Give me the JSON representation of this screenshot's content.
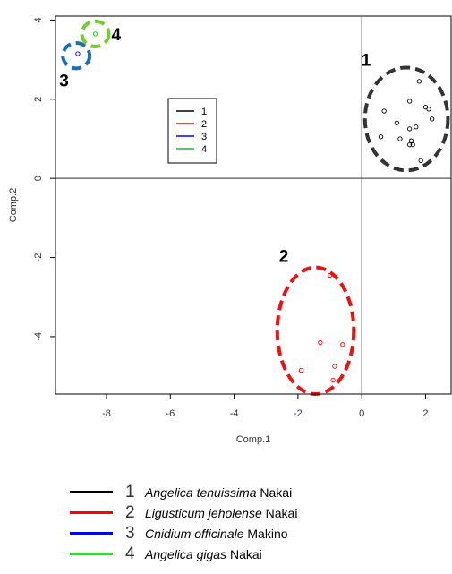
{
  "chart_data": {
    "type": "scatter",
    "title": "",
    "xlabel": "Comp.1",
    "ylabel": "Comp.2",
    "xlim": [
      -9.6,
      2.8
    ],
    "ylim": [
      -5.45,
      4.1
    ],
    "xticks": [
      -8,
      -6,
      -4,
      -2,
      0,
      2
    ],
    "yticks": [
      -4,
      -2,
      0,
      2,
      4
    ],
    "xtick_labels": [
      "-8",
      "-6",
      "-4",
      "-2",
      "0",
      "2"
    ],
    "ytick_labels": [
      "-4",
      "-2",
      "0",
      "2",
      "4"
    ],
    "reference_lines": {
      "x": 0,
      "y": 0
    },
    "grid": false,
    "legend_placement": "upper-center inside plot",
    "series": [
      {
        "name": "1",
        "color": "#000000",
        "points": [
          [
            0.7,
            1.7
          ],
          [
            0.6,
            1.05
          ],
          [
            1.1,
            1.4
          ],
          [
            1.2,
            1.0
          ],
          [
            1.5,
            1.25
          ],
          [
            1.5,
            1.95
          ],
          [
            1.8,
            2.45
          ],
          [
            1.55,
            0.95
          ],
          [
            1.5,
            0.85
          ],
          [
            1.6,
            0.85
          ],
          [
            1.7,
            1.3
          ],
          [
            2.0,
            1.8
          ],
          [
            2.2,
            1.5
          ],
          [
            2.1,
            1.75
          ],
          [
            1.85,
            0.45
          ]
        ]
      },
      {
        "name": "2",
        "color": "#ff0000",
        "points": [
          [
            -1.0,
            -2.45
          ],
          [
            -1.3,
            -4.15
          ],
          [
            -0.6,
            -4.2
          ],
          [
            -0.85,
            -4.75
          ],
          [
            -1.9,
            -4.85
          ],
          [
            -0.9,
            -5.1
          ]
        ]
      },
      {
        "name": "3",
        "color": "#0000ff",
        "points": [
          [
            -8.9,
            3.15
          ]
        ]
      },
      {
        "name": "4",
        "color": "#00cc00",
        "points": [
          [
            -8.35,
            3.65
          ]
        ]
      }
    ],
    "clusters": [
      {
        "label": "1",
        "color": "#333333",
        "center": [
          1.4,
          1.5
        ],
        "radius": [
          1.3,
          1.3
        ]
      },
      {
        "label": "2",
        "color": "#ee1111",
        "center": [
          -1.45,
          -3.85
        ],
        "radius": [
          1.2,
          1.6
        ]
      },
      {
        "label": "3",
        "color": "#1a6fb5",
        "center": [
          -8.95,
          3.1
        ],
        "radius": [
          0.42,
          0.32
        ]
      },
      {
        "label": "4",
        "color": "#77cc33",
        "center": [
          -8.35,
          3.65
        ],
        "radius": [
          0.42,
          0.32
        ]
      }
    ],
    "inner_legend": [
      {
        "label": "1",
        "color": "#000000"
      },
      {
        "label": "2",
        "color": "#ff0000"
      },
      {
        "label": "3",
        "color": "#0000ff"
      },
      {
        "label": "4",
        "color": "#00cc00"
      }
    ]
  },
  "species_legend": [
    {
      "num": "1",
      "color": "#000000",
      "italic": "Angelica tenuissima",
      "author": " Nakai"
    },
    {
      "num": "2",
      "color": "#ff0000",
      "italic": "Ligusticum jeholense",
      "author": " Nakai"
    },
    {
      "num": "3",
      "color": "#0000ff",
      "italic": "Cnidium officinale",
      "author": " Makino"
    },
    {
      "num": "4",
      "color": "#00ff00",
      "italic": "Angelica gigas",
      "author": " Nakai"
    }
  ]
}
